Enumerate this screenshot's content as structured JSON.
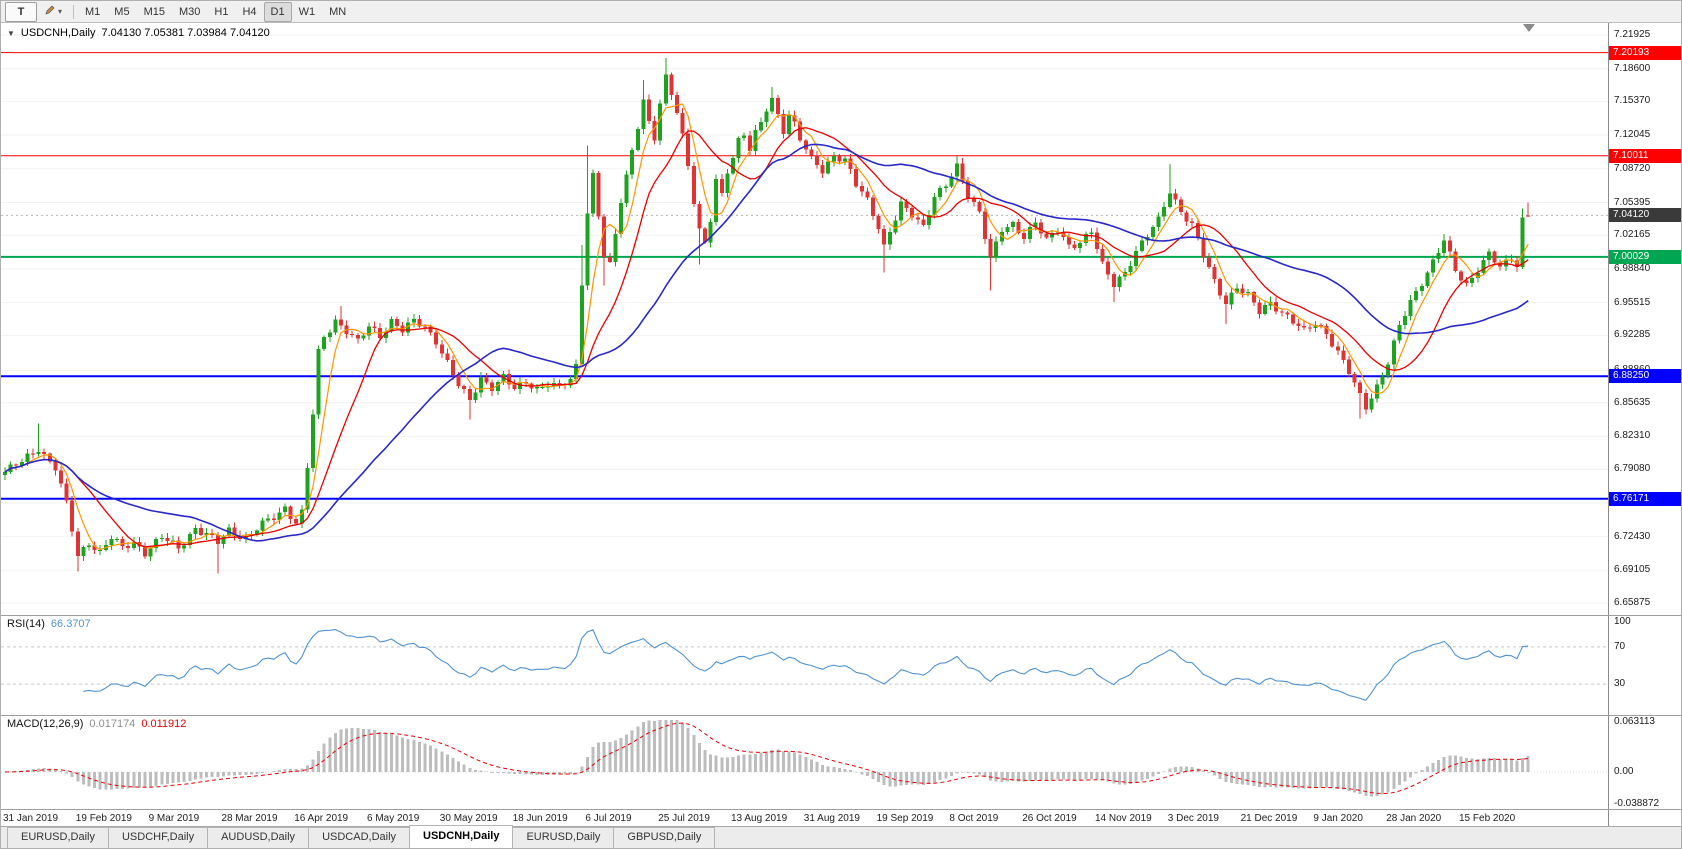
{
  "toolbar": {
    "text_tool_label": "T",
    "timeframes": [
      "M1",
      "M5",
      "M15",
      "M30",
      "H1",
      "H4",
      "D1",
      "W1",
      "MN"
    ],
    "active_timeframe": "D1"
  },
  "chart": {
    "title": "USDCNH,Daily",
    "ohlc_text": "7.04130 7.05381 7.03984 7.04120"
  },
  "chart_data": {
    "type": "candlestick",
    "symbol": "USDCNH",
    "timeframe": "Daily",
    "current_ohlc": {
      "open": 7.0413,
      "high": 7.05381,
      "low": 7.03984,
      "close": 7.0412
    },
    "bars": 273,
    "bar_spacing_px": 5.6,
    "price_scale": {
      "min": 6.6469,
      "max": 7.2311
    },
    "y_axis_labels": [
      "7.21925",
      "7.18600",
      "7.15370",
      "7.12045",
      "7.08720",
      "7.05395",
      "7.02165",
      "6.98840",
      "6.95515",
      "6.92285",
      "6.88860",
      "6.85635",
      "6.82310",
      "6.79080",
      "6.75755",
      "6.72430",
      "6.69105",
      "6.65875"
    ],
    "x_labels": [
      "31 Jan 2019",
      "19 Feb 2019",
      "9 Mar 2019",
      "28 Mar 2019",
      "16 Apr 2019",
      "6 May 2019",
      "30 May 2019",
      "18 Jun 2019",
      "6 Jul 2019",
      "25 Jul 2019",
      "13 Aug 2019",
      "31 Aug 2019",
      "19 Sep 2019",
      "8 Oct 2019",
      "26 Oct 2019",
      "14 Nov 2019",
      "3 Dec 2019",
      "21 Dec 2019",
      "9 Jan 2020",
      "28 Jan 2020",
      "15 Feb 2020"
    ],
    "x_label_bar_step": 13,
    "hlines": [
      {
        "label": "7.20193",
        "value": 7.20193,
        "color": "#ff0000",
        "width": 1
      },
      {
        "label": "7.10011",
        "value": 7.10011,
        "color": "#ff0000",
        "width": 1
      },
      {
        "label": "7.00029",
        "value": 7.00029,
        "color": "#00a651",
        "width": 2
      },
      {
        "label": "6.88250",
        "value": 6.8825,
        "color": "#0000ff",
        "width": 2
      },
      {
        "label": "6.76171",
        "value": 6.76171,
        "color": "#0000ff",
        "width": 2
      }
    ],
    "current_price_tag": {
      "label": "7.04120",
      "value": 7.0412,
      "color": "#3a3a3a"
    },
    "bull_color": "#1fa21f",
    "bear_color": "#de3434",
    "moving_averages": [
      {
        "period": 5,
        "color": "#ff9500",
        "width": 1.2
      },
      {
        "period": 13,
        "color": "#e80000",
        "width": 1.3
      },
      {
        "period": 34,
        "color": "#2828c8",
        "width": 1.6
      }
    ],
    "close_anchors": [
      [
        0,
        6.788
      ],
      [
        3,
        6.798
      ],
      [
        6,
        6.812
      ],
      [
        9,
        6.792
      ],
      [
        11,
        6.756
      ],
      [
        13,
        6.705
      ],
      [
        15,
        6.719
      ],
      [
        17,
        6.709
      ],
      [
        19,
        6.723
      ],
      [
        21,
        6.713
      ],
      [
        23,
        6.719
      ],
      [
        25,
        6.709
      ],
      [
        28,
        6.723
      ],
      [
        31,
        6.713
      ],
      [
        34,
        6.733
      ],
      [
        37,
        6.722
      ],
      [
        38,
        6.718
      ],
      [
        40,
        6.731
      ],
      [
        43,
        6.723
      ],
      [
        46,
        6.736
      ],
      [
        48,
        6.743
      ],
      [
        50,
        6.753
      ],
      [
        52,
        6.739
      ],
      [
        53,
        6.748
      ],
      [
        54,
        6.792
      ],
      [
        55,
        6.845
      ],
      [
        56,
        6.905
      ],
      [
        57,
        6.921
      ],
      [
        59,
        6.938
      ],
      [
        61,
        6.928
      ],
      [
        63,
        6.916
      ],
      [
        65,
        6.931
      ],
      [
        67,
        6.923
      ],
      [
        69,
        6.938
      ],
      [
        71,
        6.928
      ],
      [
        73,
        6.936
      ],
      [
        75,
        6.931
      ],
      [
        77,
        6.918
      ],
      [
        79,
        6.896
      ],
      [
        81,
        6.873
      ],
      [
        83,
        6.858
      ],
      [
        85,
        6.881
      ],
      [
        87,
        6.872
      ],
      [
        89,
        6.881
      ],
      [
        91,
        6.869
      ],
      [
        93,
        6.877
      ],
      [
        95,
        6.871
      ],
      [
        97,
        6.875
      ],
      [
        99,
        6.871
      ],
      [
        101,
        6.879
      ],
      [
        102,
        6.893
      ],
      [
        103,
        6.976
      ],
      [
        104,
        7.046
      ],
      [
        105,
        7.081
      ],
      [
        106,
        7.041
      ],
      [
        107,
        7.001
      ],
      [
        108,
        6.991
      ],
      [
        109,
        7.021
      ],
      [
        110,
        7.056
      ],
      [
        111,
        7.081
      ],
      [
        112,
        7.106
      ],
      [
        113,
        7.131
      ],
      [
        114,
        7.156
      ],
      [
        115,
        7.131
      ],
      [
        116,
        7.116
      ],
      [
        117,
        7.151
      ],
      [
        118,
        7.176
      ],
      [
        119,
        7.161
      ],
      [
        120,
        7.146
      ],
      [
        121,
        7.121
      ],
      [
        122,
        7.091
      ],
      [
        123,
        7.056
      ],
      [
        124,
        7.026
      ],
      [
        125,
        7.011
      ],
      [
        126,
        7.036
      ],
      [
        127,
        7.076
      ],
      [
        128,
        7.061
      ],
      [
        129,
        7.086
      ],
      [
        130,
        7.101
      ],
      [
        131,
        7.116
      ],
      [
        132,
        7.121
      ],
      [
        133,
        7.106
      ],
      [
        134,
        7.121
      ],
      [
        135,
        7.131
      ],
      [
        136,
        7.146
      ],
      [
        137,
        7.156
      ],
      [
        138,
        7.141
      ],
      [
        139,
        7.126
      ],
      [
        140,
        7.141
      ],
      [
        141,
        7.131
      ],
      [
        142,
        7.116
      ],
      [
        144,
        7.096
      ],
      [
        146,
        7.086
      ],
      [
        148,
        7.101
      ],
      [
        150,
        7.096
      ],
      [
        152,
        7.071
      ],
      [
        154,
        7.056
      ],
      [
        156,
        7.031
      ],
      [
        157,
        7.011
      ],
      [
        158,
        7.026
      ],
      [
        160,
        7.051
      ],
      [
        162,
        7.041
      ],
      [
        164,
        7.031
      ],
      [
        166,
        7.061
      ],
      [
        168,
        7.071
      ],
      [
        170,
        7.088
      ],
      [
        172,
        7.061
      ],
      [
        174,
        7.046
      ],
      [
        176,
        6.999
      ],
      [
        178,
        7.026
      ],
      [
        180,
        7.031
      ],
      [
        182,
        7.021
      ],
      [
        184,
        7.036
      ],
      [
        186,
        7.016
      ],
      [
        188,
        7.026
      ],
      [
        190,
        7.011
      ],
      [
        192,
        7.016
      ],
      [
        194,
        7.026
      ],
      [
        196,
        6.991
      ],
      [
        198,
        6.973
      ],
      [
        200,
        6.986
      ],
      [
        202,
        7.006
      ],
      [
        204,
        7.021
      ],
      [
        206,
        7.036
      ],
      [
        208,
        7.066
      ],
      [
        210,
        7.046
      ],
      [
        212,
        7.031
      ],
      [
        214,
        7.001
      ],
      [
        216,
        6.976
      ],
      [
        218,
        6.956
      ],
      [
        220,
        6.971
      ],
      [
        222,
        6.961
      ],
      [
        224,
        6.946
      ],
      [
        226,
        6.956
      ],
      [
        228,
        6.946
      ],
      [
        230,
        6.936
      ],
      [
        232,
        6.926
      ],
      [
        234,
        6.936
      ],
      [
        236,
        6.926
      ],
      [
        238,
        6.906
      ],
      [
        240,
        6.886
      ],
      [
        242,
        6.863
      ],
      [
        243,
        6.853
      ],
      [
        245,
        6.873
      ],
      [
        247,
        6.896
      ],
      [
        249,
        6.931
      ],
      [
        251,
        6.956
      ],
      [
        253,
        6.976
      ],
      [
        255,
        6.996
      ],
      [
        257,
        7.016
      ],
      [
        259,
        6.986
      ],
      [
        261,
        6.973
      ],
      [
        263,
        6.989
      ],
      [
        265,
        7.003
      ],
      [
        267,
        6.989
      ],
      [
        269,
        6.999
      ],
      [
        270,
        6.993
      ],
      [
        271,
        7.038
      ],
      [
        272,
        7.0412
      ]
    ],
    "wick_overrides": [
      {
        "i": 6,
        "high": 6.836
      },
      {
        "i": 13,
        "low": 6.69
      },
      {
        "i": 38,
        "low": 6.688
      },
      {
        "i": 60,
        "high": 6.952
      },
      {
        "i": 83,
        "low": 6.84
      },
      {
        "i": 103,
        "high": 7.012
      },
      {
        "i": 104,
        "high": 7.11
      },
      {
        "i": 107,
        "low": 6.972
      },
      {
        "i": 114,
        "high": 7.175
      },
      {
        "i": 118,
        "high": 7.1966
      },
      {
        "i": 124,
        "low": 6.993
      },
      {
        "i": 137,
        "high": 7.168
      },
      {
        "i": 157,
        "low": 6.985
      },
      {
        "i": 170,
        "high": 7.1
      },
      {
        "i": 176,
        "low": 6.967
      },
      {
        "i": 198,
        "low": 6.956
      },
      {
        "i": 208,
        "high": 7.092
      },
      {
        "i": 218,
        "low": 6.934
      },
      {
        "i": 242,
        "low": 6.841
      },
      {
        "i": 257,
        "high": 7.023
      },
      {
        "i": 271,
        "high": 7.048
      }
    ],
    "indicators": {
      "rsi": {
        "label": "RSI(14)",
        "value": "66.3707",
        "period": 14,
        "color": "#4f93d2",
        "levels": [
          70,
          30
        ],
        "axis_labels": [
          {
            "text": "100",
            "value": 100
          },
          {
            "text": "70",
            "value": 70
          },
          {
            "text": "30",
            "value": 30
          }
        ]
      },
      "macd": {
        "label": "MACD(12,26,9)",
        "value_main": "0.017174",
        "value_signal": "0.011912",
        "fast": 12,
        "slow": 26,
        "signal": 9,
        "hist_color": "#bdbdbd",
        "signal_color": "#e80000",
        "scale": {
          "min": -0.038872,
          "max": 0.063113
        },
        "axis_labels": [
          {
            "text": "0.063113",
            "value": 0.063113
          },
          {
            "text": "0.00",
            "value": 0
          },
          {
            "text": "-0.038872",
            "value": -0.038872
          }
        ]
      }
    }
  },
  "tabs": [
    {
      "label": "EURUSD,Daily",
      "active": false
    },
    {
      "label": "USDCHF,Daily",
      "active": false
    },
    {
      "label": "AUDUSD,Daily",
      "active": false
    },
    {
      "label": "USDCAD,Daily",
      "active": false
    },
    {
      "label": "USDCNH,Daily",
      "active": true
    },
    {
      "label": "EURUSD,Daily",
      "active": false
    },
    {
      "label": "GBPUSD,Daily",
      "active": false
    }
  ]
}
